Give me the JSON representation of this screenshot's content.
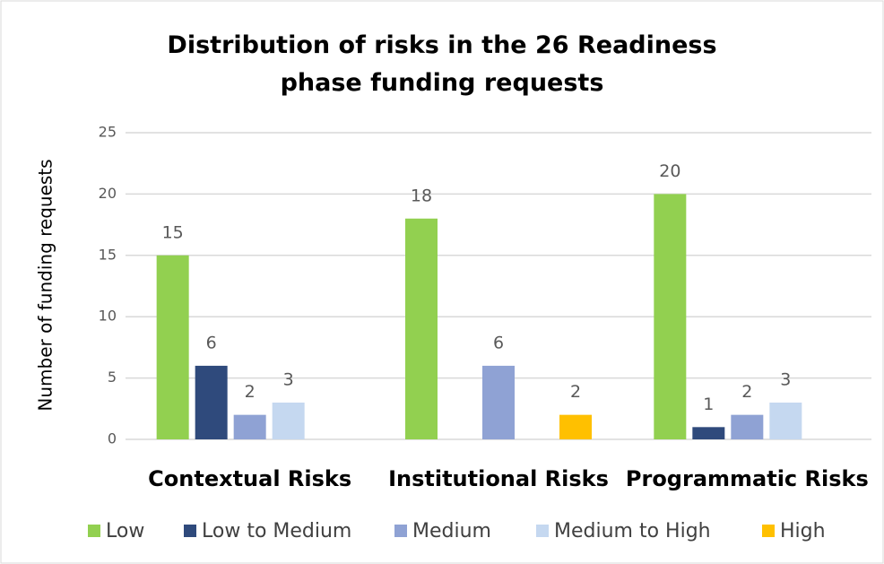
{
  "chart_data": {
    "type": "bar",
    "title": "Distribution of risks in the 26 Readiness phase funding requests",
    "y_label": "Number of funding requests",
    "categories": [
      "Contextual Risks",
      "Institutional Risks",
      "Programmatic Risks"
    ],
    "series": [
      {
        "name": "Low",
        "color": "#92d050",
        "values": [
          15,
          18,
          20
        ]
      },
      {
        "name": "Low to Medium",
        "color": "#2f4a7c",
        "values": [
          6,
          null,
          1
        ]
      },
      {
        "name": "Medium",
        "color": "#8fa2d4",
        "values": [
          2,
          6,
          2
        ]
      },
      {
        "name": "Medium to High",
        "color": "#c5d8f0",
        "values": [
          3,
          null,
          3
        ]
      },
      {
        "name": "High",
        "color": "#ffc000",
        "values": [
          null,
          2,
          null
        ]
      }
    ],
    "ylim": [
      0,
      25
    ],
    "yticks": [
      0,
      5,
      10,
      15,
      20,
      25
    ],
    "grid": true,
    "legend": "bottom"
  }
}
